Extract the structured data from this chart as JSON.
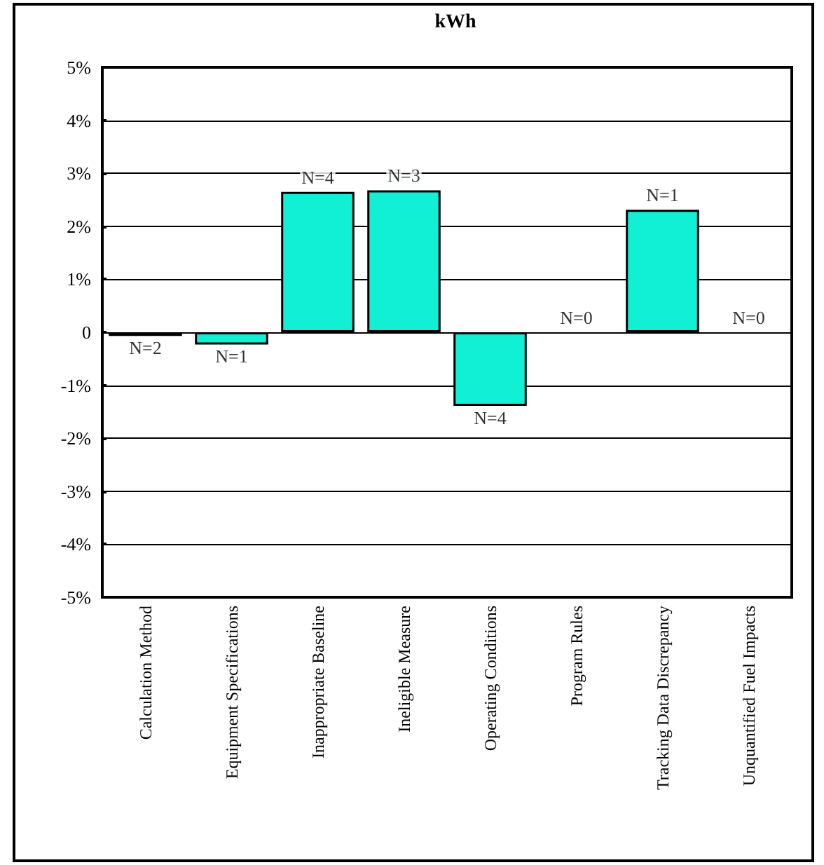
{
  "chart_data": {
    "type": "bar",
    "title": "kWh",
    "categories": [
      "Calculation Method",
      "Equipment Specifications",
      "Inappropriate Baseline",
      "Ineligible Measure",
      "Operating Conditions",
      "Program Rules",
      "Tracking Data Discrepancy",
      "Unquantified Fuel Impacts"
    ],
    "values": [
      -0.07,
      -0.23,
      2.65,
      2.68,
      -1.39,
      0,
      2.31,
      0
    ],
    "annotations": [
      {
        "text": "N=2",
        "x": "Calculation Method",
        "y": -0.07
      },
      {
        "text": "N=1",
        "x": "Equipment Specifications",
        "y": -0.23
      },
      {
        "text": "N=4",
        "x": "Inappropriate Baseline",
        "y": 2.65
      },
      {
        "text": "N=3",
        "x": "Ineligible Measure",
        "y": 2.68
      },
      {
        "text": "N=4",
        "x": "Operating Conditions",
        "y": -1.39
      },
      {
        "text": "N=0",
        "x": "Program Rules",
        "y": 0
      },
      {
        "text": "N=1",
        "x": "Tracking Data Discrepancy",
        "y": 2.31
      },
      {
        "text": "N=0",
        "x": "Unquantified Fuel Impacts",
        "y": 0
      }
    ],
    "color": "#11f0d4",
    "ylim": [
      -5,
      5
    ],
    "yticks": [
      {
        "value": -5,
        "label": "-5%"
      },
      {
        "value": -4,
        "label": "-4%"
      },
      {
        "value": -3,
        "label": "-3%"
      },
      {
        "value": -2,
        "label": "-2%"
      },
      {
        "value": -1,
        "label": "-1%"
      },
      {
        "value": 0,
        "label": "0"
      },
      {
        "value": 1,
        "label": "1%"
      },
      {
        "value": 2,
        "label": "2%"
      },
      {
        "value": 3,
        "label": "3%"
      },
      {
        "value": 4,
        "label": "4%"
      },
      {
        "value": 5,
        "label": "5%"
      }
    ],
    "grid": "y"
  }
}
